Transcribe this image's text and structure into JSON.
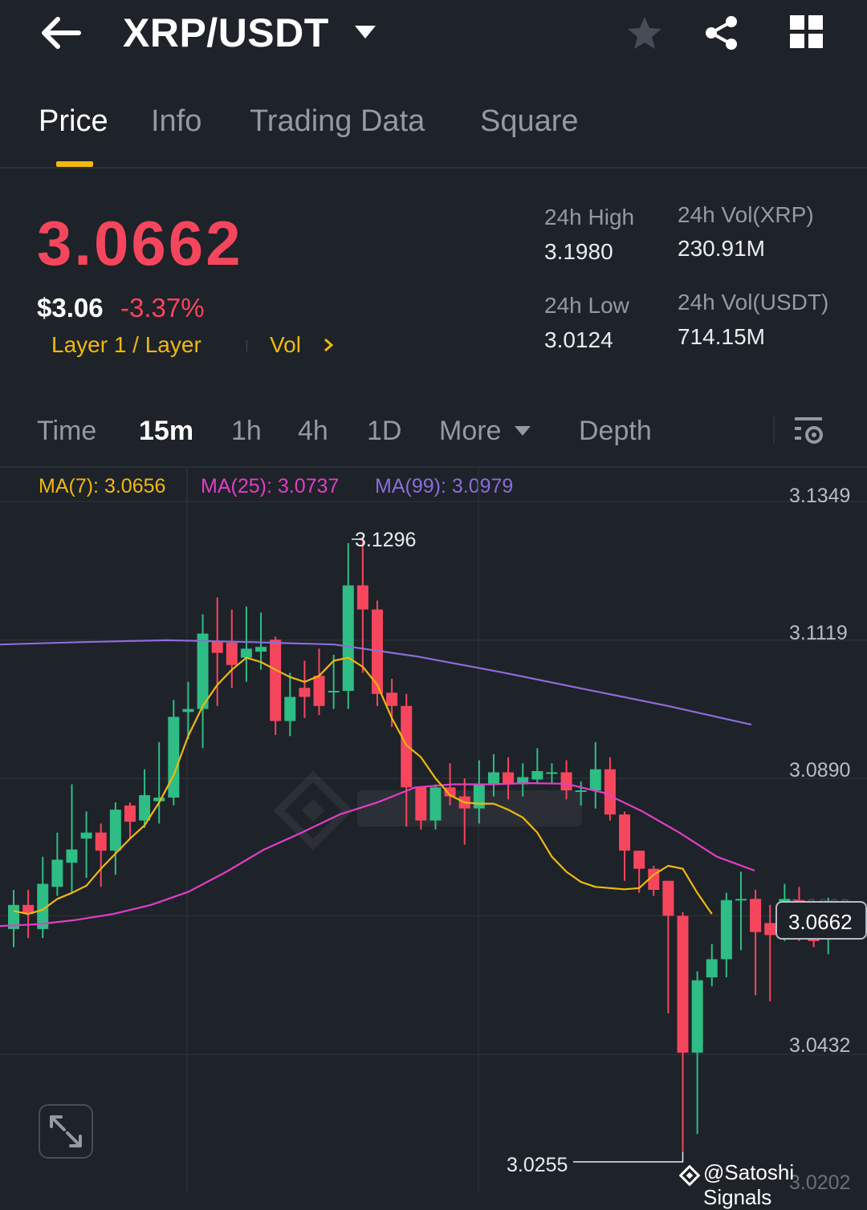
{
  "header": {
    "title": "XRP/USDT"
  },
  "tabs": [
    {
      "label": "Price"
    },
    {
      "label": "Info"
    },
    {
      "label": "Trading Data"
    },
    {
      "label": "Square"
    }
  ],
  "ticker": {
    "last_price": "3.0662",
    "usd_price": "$3.06",
    "change_pct": "-3.37%",
    "category": "Layer 1 / Layer",
    "vol_link": "Vol",
    "high_label": "24h High",
    "high_value": "3.1980",
    "low_label": "24h Low",
    "low_value": "3.0124",
    "vol_base_label": "24h Vol(XRP)",
    "vol_base_value": "230.91M",
    "vol_quote_label": "24h Vol(USDT)",
    "vol_quote_value": "714.15M"
  },
  "intervals": {
    "time": "Time",
    "m15": "15m",
    "h1": "1h",
    "h4": "4h",
    "d1": "1D",
    "more": "More",
    "depth": "Depth"
  },
  "indicators": {
    "ma7": "MA(7): 3.0656",
    "ma25": "MA(25): 3.0737",
    "ma99": "MA(99): 3.0979"
  },
  "colors": {
    "up": "#2ebd85",
    "down": "#f6465d",
    "accent": "#f0b90b",
    "ma7": "#f0b90b",
    "ma25": "#e23ec6",
    "ma99": "#8c6ddb"
  },
  "chart_data": {
    "type": "candlestick",
    "ylim": [
      3.0202,
      3.1405
    ],
    "y_ticks": [
      "3.1349",
      "3.1119",
      "3.0890",
      "3.0662",
      "3.0432",
      "3.0202"
    ],
    "last_price_label": "3.0662",
    "high_marker": "3.1296",
    "low_marker": "3.0255",
    "candles": [
      [
        3.064,
        3.068,
        3.0705,
        3.061
      ],
      [
        3.068,
        3.0665,
        3.0705,
        3.0625
      ],
      [
        3.064,
        3.0715,
        3.076,
        3.0625
      ],
      [
        3.071,
        3.0755,
        3.08,
        3.0695
      ],
      [
        3.075,
        3.0772,
        3.088,
        3.07
      ],
      [
        3.079,
        3.08,
        3.0835,
        3.0725
      ],
      [
        3.08,
        3.077,
        3.0815,
        3.071
      ],
      [
        3.077,
        3.0838,
        3.085,
        3.073
      ],
      [
        3.0845,
        3.0818,
        3.085,
        3.079
      ],
      [
        3.082,
        3.0862,
        3.0905,
        3.0808
      ],
      [
        3.0852,
        3.0858,
        3.095,
        3.0815
      ],
      [
        3.0858,
        3.0992,
        3.102,
        3.0845
      ],
      [
        3.1,
        3.1005,
        3.105,
        3.0955
      ],
      [
        3.1005,
        3.113,
        3.1162,
        3.094
      ],
      [
        3.1118,
        3.1098,
        3.119,
        3.101
      ],
      [
        3.1115,
        3.1078,
        3.117,
        3.104
      ],
      [
        3.109,
        3.1105,
        3.1175,
        3.105
      ],
      [
        3.11,
        3.1108,
        3.1165,
        3.107
      ],
      [
        3.112,
        3.0985,
        3.1125,
        3.0962
      ],
      [
        3.0985,
        3.1025,
        3.1065,
        3.096
      ],
      [
        3.104,
        3.1025,
        3.1085,
        3.099
      ],
      [
        3.106,
        3.101,
        3.1105,
        3.0995
      ],
      [
        3.1035,
        3.1035,
        3.1095,
        3.1005
      ],
      [
        3.1035,
        3.121,
        3.128,
        3.1005
      ],
      [
        3.121,
        3.117,
        3.129,
        3.1065
      ],
      [
        3.117,
        3.103,
        3.1185,
        3.101
      ],
      [
        3.1032,
        3.101,
        3.1055,
        3.0975
      ],
      [
        3.101,
        3.0875,
        3.103,
        3.081
      ],
      [
        3.0875,
        3.082,
        3.0835,
        3.0805
      ],
      [
        3.082,
        3.0875,
        3.088,
        3.0805
      ],
      [
        3.0875,
        3.086,
        3.0915,
        3.0845
      ],
      [
        3.086,
        3.084,
        3.089,
        3.078
      ],
      [
        3.084,
        3.088,
        3.092,
        3.0815
      ],
      [
        3.088,
        3.09,
        3.093,
        3.086
      ],
      [
        3.09,
        3.088,
        3.0925,
        3.0855
      ],
      [
        3.088,
        3.0892,
        3.0915,
        3.086
      ],
      [
        3.0888,
        3.0902,
        3.094,
        3.088
      ],
      [
        3.09,
        3.09,
        3.0915,
        3.088
      ],
      [
        3.09,
        3.087,
        3.092,
        3.0855
      ],
      [
        3.087,
        3.087,
        3.0885,
        3.0845
      ],
      [
        3.087,
        3.0905,
        3.095,
        3.084
      ],
      [
        3.0905,
        3.083,
        3.0925,
        3.082
      ],
      [
        3.083,
        3.077,
        3.0835,
        3.072
      ],
      [
        3.077,
        3.074,
        3.077,
        3.07
      ],
      [
        3.074,
        3.0705,
        3.0745,
        3.0695
      ],
      [
        3.072,
        3.0662,
        3.072,
        3.05
      ],
      [
        3.0662,
        3.0435,
        3.0668,
        3.027
      ],
      [
        3.0435,
        3.0555,
        3.057,
        3.03
      ],
      [
        3.056,
        3.059,
        3.0615,
        3.0545
      ],
      [
        3.059,
        3.0688,
        3.07,
        3.056
      ],
      [
        3.0688,
        3.069,
        3.0735,
        3.0605
      ],
      [
        3.069,
        3.0635,
        3.0705,
        3.053
      ],
      [
        3.065,
        3.063,
        3.068,
        3.052
      ],
      [
        3.063,
        3.069,
        3.0715,
        3.062
      ],
      [
        3.0688,
        3.0642,
        3.071,
        3.062
      ],
      [
        3.064,
        3.062,
        3.065,
        3.061
      ],
      [
        3.063,
        3.0665,
        3.0692,
        3.0598
      ]
    ],
    "ma7": [
      3.067,
      3.0665,
      3.0672,
      3.069,
      3.07,
      3.0712,
      3.074,
      3.0765,
      3.079,
      3.0812,
      3.085,
      3.0895,
      3.096,
      3.101,
      3.1045,
      3.107,
      3.109,
      3.1083,
      3.107,
      3.1058,
      3.105,
      3.106,
      3.1085,
      3.109,
      3.1075,
      3.1045,
      3.099,
      3.0945,
      3.0925,
      3.089,
      3.0862,
      3.085,
      3.0848,
      3.0848,
      3.0838,
      3.0825,
      3.08,
      3.076,
      3.0735,
      3.0718,
      3.071,
      3.0708,
      3.0706,
      3.0708,
      3.073,
      3.0745,
      3.074,
      3.07,
      3.0665
    ],
    "ma25": [
      3.0645,
      3.0648,
      3.0655,
      3.0665,
      3.068,
      3.0702,
      3.0735,
      3.0772,
      3.08,
      3.083,
      3.085,
      3.0875,
      3.088,
      3.088,
      3.0882,
      3.0881,
      3.0866,
      3.0836,
      3.08,
      3.076,
      3.0737
    ],
    "ma99": [
      3.1112,
      3.1116,
      3.1119,
      3.1116,
      3.1112,
      3.1092,
      3.1066,
      3.1038,
      3.101,
      3.0979
    ]
  },
  "watermark_credit": "@Satoshi Signals"
}
